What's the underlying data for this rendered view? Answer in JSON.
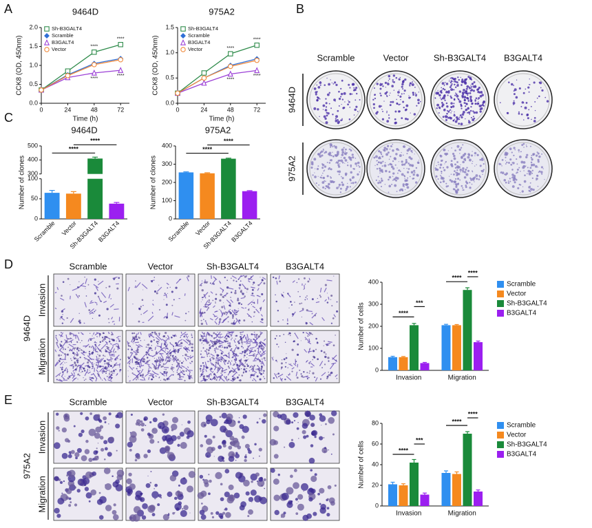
{
  "figure": {
    "panels": [
      "A",
      "B",
      "C",
      "D",
      "E"
    ],
    "B": {
      "columns": [
        "Scramble",
        "Vector",
        "Sh-B3GALT4",
        "B3GALT4"
      ],
      "rows": [
        "9464D",
        "975A2"
      ]
    },
    "D": {
      "columns": [
        "Scramble",
        "Vector",
        "Sh-B3GALT4",
        "B3GALT4"
      ],
      "cell_line": "9464D",
      "rows": [
        "Invasion",
        "Migration"
      ]
    },
    "E": {
      "columns": [
        "Scramble",
        "Vector",
        "Sh-B3GALT4",
        "B3GALT4"
      ],
      "cell_line": "975A2",
      "rows": [
        "Invasion",
        "Migration"
      ]
    }
  },
  "chart_data": [
    {
      "type": "line",
      "title": "9464D",
      "x_label": "Time (h)",
      "y_label": "CCK8 (OD, 450nm)",
      "x": [
        0,
        24,
        48,
        72
      ],
      "xlim": [
        0,
        80
      ],
      "xticks": [
        0,
        24,
        48,
        72
      ],
      "ylim": [
        0,
        2.0
      ],
      "yticks": [
        {
          "value": 0,
          "label": "0.0"
        },
        0.5,
        {
          "value": 1,
          "label": "1.0"
        },
        1.5,
        {
          "value": 2,
          "label": "2.0"
        }
      ],
      "legend": "top-left",
      "series": [
        {
          "name": "Sh-B3GALT4",
          "color": "#2e8b4a",
          "marker": "square",
          "values": [
            0.35,
            0.85,
            1.35,
            1.55
          ]
        },
        {
          "name": "Scramble",
          "color": "#2f6fd6",
          "marker": "diamond",
          "values": [
            0.35,
            0.75,
            1.05,
            1.18
          ]
        },
        {
          "name": "B3GALT4",
          "color": "#9b3fd6",
          "marker": "triangle",
          "values": [
            0.35,
            0.68,
            0.8,
            0.87
          ]
        },
        {
          "name": "Vector",
          "color": "#f0893a",
          "marker": "circle",
          "values": [
            0.35,
            0.73,
            1.02,
            1.15
          ]
        }
      ],
      "annotations": [
        {
          "series": 0,
          "index": 2,
          "label": "****",
          "position": "above"
        },
        {
          "series": 0,
          "index": 3,
          "label": "****",
          "position": "above"
        },
        {
          "series": 2,
          "index": 2,
          "label": "****",
          "position": "below"
        },
        {
          "series": 2,
          "index": 3,
          "label": "****",
          "position": "below"
        }
      ]
    },
    {
      "type": "line",
      "title": "975A2",
      "x_label": "Time (h)",
      "y_label": "CCK8 (OD, 450nm)",
      "x": [
        0,
        24,
        48,
        72
      ],
      "xlim": [
        0,
        80
      ],
      "xticks": [
        0,
        24,
        48,
        72
      ],
      "ylim": [
        0,
        1.5
      ],
      "yticks": [
        {
          "value": 0,
          "label": "0.0"
        },
        0.5,
        {
          "value": 1,
          "label": "1.0"
        },
        1.5
      ],
      "legend": "top-left",
      "series": [
        {
          "name": "Sh-B3GALT4",
          "color": "#2e8b4a",
          "marker": "square",
          "values": [
            0.2,
            0.6,
            0.98,
            1.15
          ]
        },
        {
          "name": "Scramble",
          "color": "#2f6fd6",
          "marker": "diamond",
          "values": [
            0.2,
            0.5,
            0.75,
            0.88
          ]
        },
        {
          "name": "B3GALT4",
          "color": "#9b3fd6",
          "marker": "triangle",
          "values": [
            0.2,
            0.4,
            0.58,
            0.65
          ]
        },
        {
          "name": "Vector",
          "color": "#f0893a",
          "marker": "circle",
          "values": [
            0.2,
            0.5,
            0.73,
            0.85
          ]
        }
      ],
      "annotations": [
        {
          "series": 0,
          "index": 2,
          "label": "****",
          "position": "above"
        },
        {
          "series": 0,
          "index": 3,
          "label": "****",
          "position": "above"
        },
        {
          "series": 2,
          "index": 2,
          "label": "****",
          "position": "below"
        },
        {
          "series": 2,
          "index": 3,
          "label": "****",
          "position": "below"
        }
      ]
    },
    {
      "type": "bar",
      "title": "9464D",
      "y_label": "Number of clones",
      "categories": [
        "Scramble",
        "Vector",
        "Sh-B3GALT4",
        "B3GALT4"
      ],
      "values": [
        65,
        63,
        410,
        38
      ],
      "errors": [
        6,
        5,
        10,
        3
      ],
      "colors": [
        "#2f8ff0",
        "#f5891f",
        "#1a8a3a",
        "#9b1ff0"
      ],
      "ylim": [
        0,
        500
      ],
      "ybreak": [
        100,
        300
      ],
      "yticks": [
        0,
        50,
        100,
        300,
        400,
        500
      ],
      "comparisons": [
        {
          "from": 0,
          "to": 2,
          "label": "****"
        },
        {
          "from": 1,
          "to": 3,
          "label": "****"
        }
      ]
    },
    {
      "type": "bar",
      "title": "975A2",
      "y_label": "Number of clones",
      "categories": [
        "Scramble",
        "Vector",
        "Sh-B3GALT4",
        "B3GALT4"
      ],
      "values": [
        255,
        250,
        330,
        152
      ],
      "errors": [
        3,
        3,
        3,
        3
      ],
      "colors": [
        "#2f8ff0",
        "#f5891f",
        "#1a8a3a",
        "#9b1ff0"
      ],
      "ylim": [
        0,
        400
      ],
      "yticks": [
        0,
        100,
        200,
        300,
        400
      ],
      "comparisons": [
        {
          "from": 0,
          "to": 2,
          "label": "****"
        },
        {
          "from": 1,
          "to": 3,
          "label": "****"
        }
      ]
    },
    {
      "type": "grouped-bar",
      "y_label": "Number of cells",
      "categories": [
        "Invasion",
        "Migration"
      ],
      "ylim": [
        0,
        400
      ],
      "yticks": [
        0,
        100,
        200,
        300,
        400
      ],
      "legend": "right",
      "series": [
        {
          "name": "Scramble",
          "color": "#2f8ff0",
          "values": [
            60,
            205
          ],
          "errors": [
            4,
            4
          ]
        },
        {
          "name": "Vector",
          "color": "#f5891f",
          "values": [
            60,
            205
          ],
          "errors": [
            3,
            3
          ]
        },
        {
          "name": "Sh-B3GALT4",
          "color": "#1a8a3a",
          "values": [
            205,
            365
          ],
          "errors": [
            8,
            10
          ]
        },
        {
          "name": "B3GALT4",
          "color": "#9b1ff0",
          "values": [
            33,
            128
          ],
          "errors": [
            3,
            5
          ]
        }
      ],
      "comparisons": [
        {
          "group": 0,
          "from": 0,
          "to": 2,
          "label": "****"
        },
        {
          "group": 0,
          "from": 2,
          "to": 3,
          "label": "***"
        },
        {
          "group": 1,
          "from": 0,
          "to": 2,
          "label": "****"
        },
        {
          "group": 1,
          "from": 2,
          "to": 3,
          "label": "****"
        }
      ]
    },
    {
      "type": "grouped-bar",
      "y_label": "Number of cells",
      "categories": [
        "Invasion",
        "Migration"
      ],
      "ylim": [
        0,
        80
      ],
      "yticks": [
        0,
        20,
        40,
        60,
        80
      ],
      "legend": "right",
      "series": [
        {
          "name": "Scramble",
          "color": "#2f8ff0",
          "values": [
            21,
            32
          ],
          "errors": [
            2,
            2
          ]
        },
        {
          "name": "Vector",
          "color": "#f5891f",
          "values": [
            20,
            31
          ],
          "errors": [
            1.5,
            2
          ]
        },
        {
          "name": "Sh-B3GALT4",
          "color": "#1a8a3a",
          "values": [
            42,
            70
          ],
          "errors": [
            3,
            2
          ]
        },
        {
          "name": "B3GALT4",
          "color": "#9b1ff0",
          "values": [
            11,
            14
          ],
          "errors": [
            1.5,
            1.5
          ]
        }
      ],
      "comparisons": [
        {
          "group": 0,
          "from": 0,
          "to": 2,
          "label": "****"
        },
        {
          "group": 0,
          "from": 2,
          "to": 3,
          "label": "***"
        },
        {
          "group": 1,
          "from": 0,
          "to": 2,
          "label": "****"
        },
        {
          "group": 1,
          "from": 2,
          "to": 3,
          "label": "****"
        }
      ]
    }
  ]
}
